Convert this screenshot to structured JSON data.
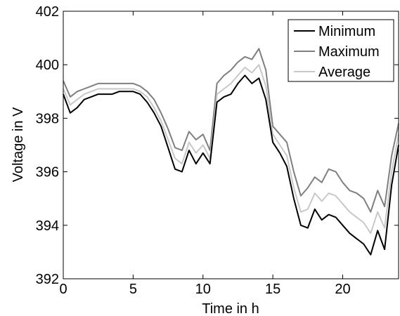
{
  "chart_data": {
    "type": "line",
    "xlabel": "Time in h",
    "ylabel": "Voltage in V",
    "xlim": [
      0,
      24
    ],
    "ylim": [
      392,
      402
    ],
    "xticks": [
      0,
      5,
      10,
      15,
      20
    ],
    "yticks": [
      392,
      394,
      396,
      398,
      400,
      402
    ],
    "grid": false,
    "legend_position": "top-right",
    "x": [
      0,
      0.5,
      1,
      1.5,
      2,
      2.5,
      3,
      3.5,
      4,
      4.5,
      5,
      5.5,
      6,
      6.5,
      7,
      7.5,
      8,
      8.5,
      9,
      9.5,
      10,
      10.5,
      11,
      11.5,
      12,
      12.5,
      13,
      13.5,
      14,
      14.5,
      15,
      15.5,
      16,
      16.5,
      17,
      17.5,
      18,
      18.5,
      19,
      19.5,
      20,
      20.5,
      21,
      21.5,
      22,
      22.5,
      23,
      23.5,
      24
    ],
    "series": [
      {
        "name": "Minimum",
        "color": "#000000",
        "values": [
          398.9,
          398.2,
          398.4,
          398.7,
          398.8,
          398.9,
          398.9,
          398.9,
          399.0,
          399.0,
          399.0,
          398.9,
          398.6,
          398.2,
          397.7,
          396.9,
          396.1,
          396.0,
          396.8,
          396.3,
          396.7,
          396.3,
          398.6,
          398.8,
          398.9,
          399.3,
          399.6,
          399.3,
          399.5,
          398.7,
          397.1,
          396.7,
          396.2,
          395.0,
          394.0,
          393.9,
          394.6,
          394.2,
          394.4,
          394.3,
          394.0,
          393.7,
          393.5,
          393.3,
          392.9,
          393.8,
          393.1,
          395.5,
          397.0
        ]
      },
      {
        "name": "Maximum",
        "color": "#7f7f7f",
        "values": [
          399.4,
          398.8,
          399.0,
          399.1,
          399.2,
          399.3,
          399.3,
          399.3,
          399.3,
          399.3,
          399.3,
          399.2,
          399.0,
          398.7,
          398.2,
          397.6,
          396.9,
          396.8,
          397.5,
          397.2,
          397.4,
          396.8,
          399.3,
          399.6,
          399.8,
          400.1,
          400.3,
          400.2,
          400.6,
          399.8,
          397.7,
          397.4,
          397.1,
          396.0,
          395.1,
          395.4,
          395.8,
          395.6,
          396.1,
          396.0,
          395.6,
          395.3,
          395.2,
          395.0,
          394.5,
          395.3,
          394.7,
          396.6,
          397.8
        ]
      },
      {
        "name": "Average",
        "color": "#c8c8c8",
        "values": [
          399.1,
          398.5,
          398.7,
          398.9,
          399.0,
          399.1,
          399.1,
          399.1,
          399.1,
          399.1,
          399.1,
          399.0,
          398.8,
          398.4,
          397.9,
          397.2,
          396.5,
          396.3,
          397.1,
          396.7,
          397.0,
          396.5,
          398.9,
          399.1,
          399.3,
          399.6,
          399.9,
          399.7,
          400.0,
          399.2,
          397.4,
          397.0,
          396.6,
          395.4,
          394.5,
          394.6,
          395.2,
          394.9,
          395.2,
          395.1,
          394.8,
          394.5,
          394.3,
          394.1,
          393.7,
          394.5,
          393.9,
          396.0,
          397.4
        ]
      }
    ]
  }
}
